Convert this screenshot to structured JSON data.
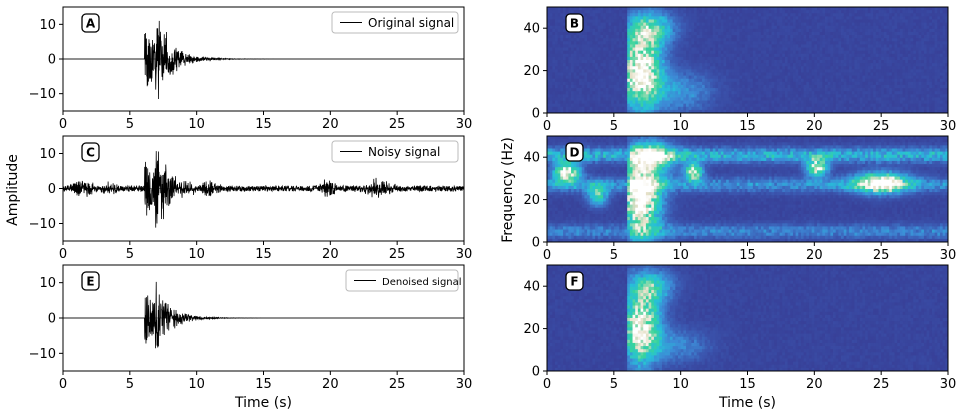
{
  "figure": {
    "ylabel_left": "Amplitude",
    "ylabel_right": "Frequency (Hz)",
    "xlabel": "Time (s)"
  },
  "chart_data": [
    {
      "id": "A",
      "type": "line",
      "panel_label": "A",
      "legend": "Original signal",
      "xlim": [
        0,
        30
      ],
      "ylim": [
        -15,
        15
      ],
      "xticks": [
        "0",
        "5",
        "10",
        "15",
        "20",
        "25",
        "30"
      ],
      "yticks": [
        "10",
        "0",
        "−10"
      ],
      "xlabel": "",
      "ylabel": "",
      "events": [
        {
          "t0": 6.1,
          "peak": 11,
          "decay": 1.4,
          "period": 0.09
        },
        {
          "t0": 6.9,
          "peak": 13,
          "decay": 1.0,
          "period": 0.11
        }
      ],
      "noise_bursts": []
    },
    {
      "id": "C",
      "type": "line",
      "panel_label": "C",
      "legend": "Noisy signal",
      "xlim": [
        0,
        30
      ],
      "ylim": [
        -15,
        15
      ],
      "xticks": [
        "0",
        "5",
        "10",
        "15",
        "20",
        "25",
        "30"
      ],
      "yticks": [
        "10",
        "0",
        "−10"
      ],
      "xlabel": "",
      "ylabel": "",
      "events": [
        {
          "t0": 6.1,
          "peak": 11,
          "decay": 1.4,
          "period": 0.09
        },
        {
          "t0": 6.9,
          "peak": 13,
          "decay": 1.0,
          "period": 0.11
        }
      ],
      "noise_level": 0.8,
      "noise_bursts": [
        {
          "center": 1.5,
          "width": 0.8,
          "amp": 2.2
        },
        {
          "center": 3.5,
          "width": 0.6,
          "amp": 1.4
        },
        {
          "center": 11.0,
          "width": 0.6,
          "amp": 2.2
        },
        {
          "center": 19.8,
          "width": 0.6,
          "amp": 2.2
        },
        {
          "center": 23.5,
          "width": 1.2,
          "amp": 2.3
        }
      ]
    },
    {
      "id": "E",
      "type": "line",
      "panel_label": "E",
      "legend": "Denoised signal",
      "xlim": [
        0,
        30
      ],
      "ylim": [
        -15,
        15
      ],
      "xticks": [
        "0",
        "5",
        "10",
        "15",
        "20",
        "25",
        "30"
      ],
      "yticks": [
        "10",
        "0",
        "−10"
      ],
      "xlabel": "Time (s)",
      "ylabel": "",
      "events": [
        {
          "t0": 6.1,
          "peak": 10,
          "decay": 1.3,
          "period": 0.09
        },
        {
          "t0": 6.9,
          "peak": 11,
          "decay": 0.9,
          "period": 0.11
        }
      ],
      "noise_bursts": []
    },
    {
      "id": "B",
      "type": "heatmap",
      "panel_label": "B",
      "xlim": [
        0,
        30
      ],
      "ylim": [
        0,
        50
      ],
      "xticks": [
        "0",
        "5",
        "10",
        "15",
        "20",
        "25",
        "30"
      ],
      "yticks": [
        "40",
        "20",
        "0"
      ],
      "xlabel": "",
      "ylabel": "",
      "colormap": [
        "#36378f",
        "#3b57b0",
        "#3d8ad6",
        "#27bfd9",
        "#37d49a",
        "#e6e0c8",
        "#ffffff"
      ],
      "energy_blobs": [
        {
          "t": 7.0,
          "f": 20,
          "dt": 1.6,
          "df": 18,
          "amp": 1.0
        },
        {
          "t": 7.8,
          "f": 40,
          "dt": 1.8,
          "df": 8,
          "amp": 0.55
        },
        {
          "t": 10.0,
          "f": 10,
          "dt": 2.5,
          "df": 10,
          "amp": 0.3
        }
      ],
      "noise_ridges": []
    },
    {
      "id": "D",
      "type": "heatmap",
      "panel_label": "D",
      "xlim": [
        0,
        30
      ],
      "ylim": [
        0,
        50
      ],
      "xticks": [
        "0",
        "5",
        "10",
        "15",
        "20",
        "25",
        "30"
      ],
      "yticks": [
        "40",
        "20",
        "0"
      ],
      "xlabel": "",
      "ylabel": "Frequency (Hz)",
      "colormap": [
        "#36378f",
        "#3b57b0",
        "#3d8ad6",
        "#27bfd9",
        "#37d49a",
        "#e6e0c8",
        "#ffffff"
      ],
      "energy_blobs": [
        {
          "t": 7.0,
          "f": 20,
          "dt": 1.6,
          "df": 18,
          "amp": 1.0
        },
        {
          "t": 7.8,
          "f": 40,
          "dt": 1.8,
          "df": 8,
          "amp": 0.6
        },
        {
          "t": 1.5,
          "f": 33,
          "dt": 1.0,
          "df": 5,
          "amp": 0.9
        },
        {
          "t": 3.8,
          "f": 22,
          "dt": 0.8,
          "df": 5,
          "amp": 0.6
        },
        {
          "t": 11.0,
          "f": 33,
          "dt": 0.7,
          "df": 4,
          "amp": 0.85
        },
        {
          "t": 20.2,
          "f": 35,
          "dt": 0.8,
          "df": 4,
          "amp": 0.9
        },
        {
          "t": 25.0,
          "f": 28,
          "dt": 2.0,
          "df": 5,
          "amp": 0.9
        }
      ],
      "noise_ridges": [
        {
          "f": 41,
          "amp": 0.5
        },
        {
          "f": 27,
          "amp": 0.35
        },
        {
          "f": 5,
          "amp": 0.3
        }
      ]
    },
    {
      "id": "F",
      "type": "heatmap",
      "panel_label": "F",
      "xlim": [
        0,
        30
      ],
      "ylim": [
        0,
        50
      ],
      "xticks": [
        "0",
        "5",
        "10",
        "15",
        "20",
        "25",
        "30"
      ],
      "yticks": [
        "40",
        "20",
        "0"
      ],
      "xlabel": "Time (s)",
      "ylabel": "",
      "colormap": [
        "#36378f",
        "#3b57b0",
        "#3d8ad6",
        "#27bfd9",
        "#37d49a",
        "#e6e0c8",
        "#ffffff"
      ],
      "energy_blobs": [
        {
          "t": 7.0,
          "f": 20,
          "dt": 1.5,
          "df": 17,
          "amp": 0.95
        },
        {
          "t": 7.8,
          "f": 40,
          "dt": 1.7,
          "df": 8,
          "amp": 0.5
        },
        {
          "t": 10.0,
          "f": 12,
          "dt": 2.2,
          "df": 8,
          "amp": 0.25
        }
      ],
      "noise_ridges": []
    }
  ]
}
